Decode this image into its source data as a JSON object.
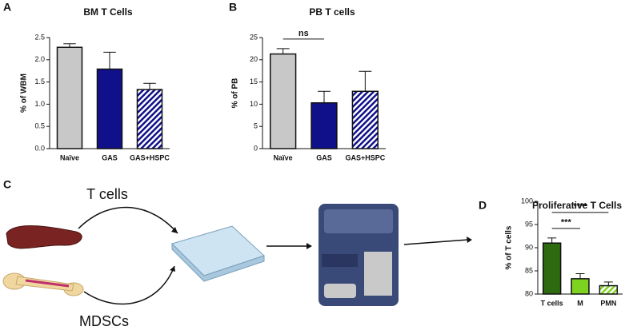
{
  "panel_labels": [
    "A",
    "B",
    "C",
    "D"
  ],
  "diagram": {
    "labels": [
      "T cells",
      "MDSCs"
    ]
  },
  "chart_data": [
    {
      "type": "bar",
      "title": "BM T Cells",
      "y_label": "% of WBM",
      "categories": [
        "Naïve",
        "GAS",
        "GAS+HSPC"
      ],
      "values": [
        2.28,
        1.79,
        1.33
      ],
      "errors": [
        0.08,
        0.38,
        0.14
      ],
      "colors": [
        "#c8c8c8",
        "#10108a",
        "#10108a"
      ],
      "hatched": [
        false,
        false,
        true
      ],
      "ylim": [
        0,
        2.5
      ],
      "yticks": [
        {
          "value": 0,
          "label": "0.0"
        },
        0.5,
        {
          "value": 1,
          "label": "1.0"
        },
        1.5,
        {
          "value": 2,
          "label": "2.0"
        },
        2.5
      ]
    },
    {
      "type": "bar",
      "title": "PB T cells",
      "y_label": "% of PB",
      "categories": [
        "Naïve",
        "GAS",
        "GAS+HSPC"
      ],
      "values": [
        21.3,
        10.3,
        12.9
      ],
      "errors": [
        1.2,
        2.6,
        4.5
      ],
      "colors": [
        "#c8c8c8",
        "#10108a",
        "#10108a"
      ],
      "hatched": [
        false,
        false,
        true
      ],
      "ylim": [
        0,
        25
      ],
      "yticks": [
        0,
        5,
        10,
        15,
        20,
        25
      ],
      "annotations": [
        {
          "text": "ns",
          "from": 0,
          "to": 1
        }
      ]
    },
    {
      "type": "bar",
      "title": "Proliferative T Cells",
      "y_label": "% of T cells",
      "categories": [
        "T cells",
        "M",
        "PMN"
      ],
      "values": [
        91.0,
        83.3,
        81.8
      ],
      "errors": [
        1.1,
        1.1,
        0.8
      ],
      "colors": [
        "#2e6b10",
        "#7ed321",
        "#7ed321"
      ],
      "hatched": [
        false,
        false,
        true
      ],
      "ylim": [
        80,
        100
      ],
      "yticks": [
        80,
        85,
        90,
        95,
        100
      ],
      "annotations": [
        {
          "text": "***",
          "from": 0,
          "to": 1
        },
        {
          "text": "****",
          "from": 0,
          "to": 2
        }
      ]
    }
  ]
}
